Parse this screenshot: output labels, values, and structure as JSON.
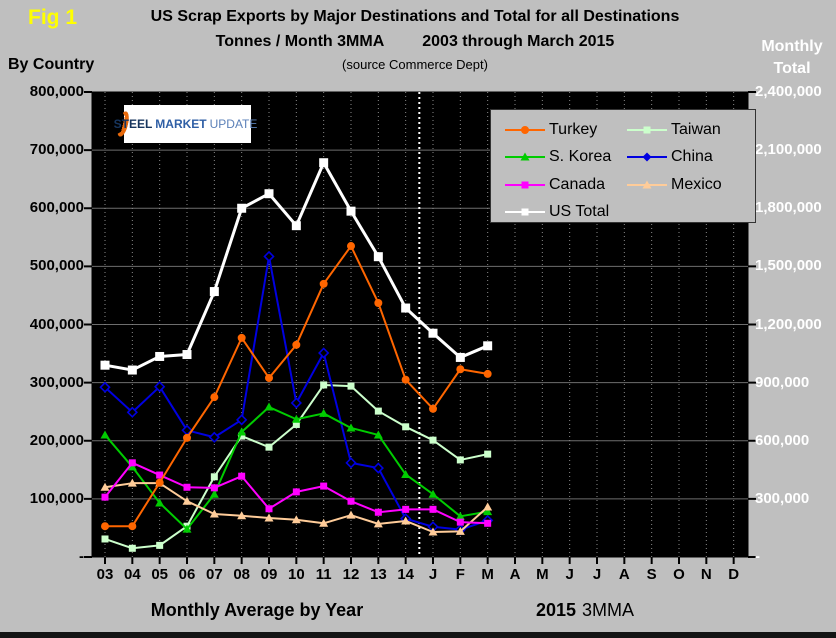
{
  "header": {
    "fig_label": "Fig 1",
    "title": "US Scrap Exports by Major Destinations and Total for all Destinations",
    "subtitle": "Tonnes / Month 3MMA",
    "period": "2003 through March 2015",
    "source": "(source Commerce Dept)",
    "left_axis_title": "By Country",
    "right_axis_title_line1": "Monthly",
    "right_axis_title_line2": "Total"
  },
  "logo": {
    "steel": "STEEL",
    "market": "MARKET",
    "update": "UPDATE"
  },
  "footer": {
    "left_caption": "Monthly Average by Year",
    "right_caption_year": "2015",
    "right_caption_suffix": "3MMA"
  },
  "chart_data": {
    "type": "line",
    "title": "US Scrap Exports by Major Destinations and Total for all Destinations",
    "subtitle": "Tonnes / Month 3MMA  2003 through March 2015",
    "source": "(source Commerce Dept)",
    "plot_background": "#000000",
    "x_categories": [
      "03",
      "04",
      "05",
      "06",
      "07",
      "08",
      "09",
      "10",
      "11",
      "12",
      "13",
      "14",
      "J",
      "F",
      "M",
      "A",
      "M",
      "J",
      "J",
      "A",
      "S",
      "O",
      "N",
      "D"
    ],
    "x_note": "03-14 are yearly monthly averages; J-D are 2015 months (data through March)",
    "separator_between": [
      "14",
      "J"
    ],
    "left_axis": {
      "title": "By Country",
      "min": 0,
      "max": 800000,
      "tick_step": 100000,
      "tick_labels": [
        "800,000",
        "700,000",
        "600,000",
        "500,000",
        "400,000",
        "300,000",
        "200,000",
        "100,000",
        "-"
      ]
    },
    "right_axis": {
      "title": "Monthly Total",
      "min": 0,
      "max": 2400000,
      "tick_step": 300000,
      "tick_labels": [
        "2,400,000",
        "2,100,000",
        "1,800,000",
        "1,500,000",
        "1,200,000",
        "900,000",
        "600,000",
        "300,000",
        "-"
      ]
    },
    "legend_order": [
      "Turkey",
      "Taiwan",
      "S. Korea",
      "China",
      "Canada",
      "Mexico",
      "US Total"
    ],
    "legend_position": "top-right",
    "series": [
      {
        "name": "Taiwan",
        "color": "#CCFFCC",
        "marker": "square",
        "open": false,
        "axis": "left",
        "values": [
          31000,
          15000,
          20000,
          53000,
          138000,
          208000,
          189000,
          228000,
          296000,
          294000,
          251000,
          224000,
          201000,
          167000,
          177000
        ]
      },
      {
        "name": "China",
        "color": "#0000E0",
        "marker": "diamond",
        "open": true,
        "axis": "left",
        "values": [
          292000,
          249000,
          293000,
          218000,
          206000,
          236000,
          517000,
          265000,
          351000,
          162000,
          153000,
          66000,
          52000,
          47000,
          63000
        ]
      },
      {
        "name": "S. Korea",
        "color": "#00CC00",
        "marker": "triangle",
        "open": false,
        "axis": "left",
        "values": [
          210000,
          155000,
          93000,
          48000,
          108000,
          215000,
          258000,
          237000,
          247000,
          222000,
          210000,
          142000,
          108000,
          70000,
          78000
        ]
      },
      {
        "name": "Mexico",
        "color": "#FFCC99",
        "marker": "triangle",
        "open": false,
        "axis": "left",
        "values": [
          120000,
          127000,
          127000,
          96000,
          74000,
          71000,
          67000,
          64000,
          58000,
          72000,
          57000,
          62000,
          43000,
          44000,
          86000
        ]
      },
      {
        "name": "Canada",
        "color": "#FF00FF",
        "marker": "square",
        "open": false,
        "axis": "left",
        "values": [
          103000,
          162000,
          141000,
          120000,
          119000,
          139000,
          83000,
          112000,
          122000,
          96000,
          77000,
          82000,
          82000,
          60000,
          58000
        ]
      },
      {
        "name": "Turkey",
        "color": "#FF6600",
        "marker": "circle",
        "open": false,
        "axis": "left",
        "values": [
          53000,
          53000,
          128000,
          205000,
          275000,
          377000,
          308000,
          365000,
          470000,
          535000,
          437000,
          305000,
          255000,
          323000,
          315000
        ]
      },
      {
        "name": "US Total",
        "color": "#FFFFFF",
        "marker": "square",
        "open": false,
        "axis": "right",
        "values": [
          990000,
          965000,
          1035000,
          1045000,
          1370000,
          1800000,
          1875000,
          1710000,
          2035000,
          1785000,
          1550000,
          1285000,
          1155000,
          1030000,
          1090000
        ]
      }
    ],
    "x_axis_captions": {
      "left": "Monthly Average by Year",
      "right": "2015 3MMA"
    }
  }
}
